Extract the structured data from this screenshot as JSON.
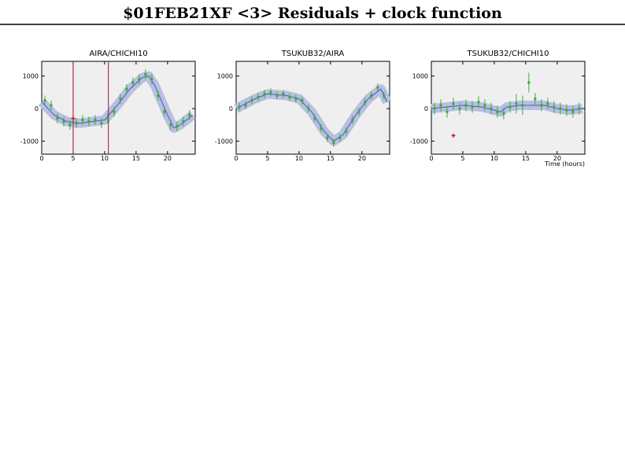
{
  "title": "$01FEB21XF <3> Residuals + clock function",
  "chart_data": [
    {
      "type": "scatter",
      "title": "AIRA/CHICHI10",
      "xlim": [
        0,
        24.4
      ],
      "ylim": [
        -1400,
        1450
      ],
      "xticks": [
        0,
        5,
        10,
        15,
        20
      ],
      "yticks": [
        -1000,
        0,
        1000
      ],
      "x": [
        0.5,
        1.5,
        2.5,
        3.5,
        4.5,
        5.5,
        6.5,
        7.5,
        8.5,
        9.5,
        10.5,
        11.5,
        12.5,
        13.5,
        14.5,
        15.5,
        16.5,
        17.5,
        18.5,
        19.5,
        20.5,
        21.5,
        22.5,
        23.5
      ],
      "values": [
        250,
        100,
        -300,
        -400,
        -500,
        -450,
        -350,
        -400,
        -350,
        -450,
        -300,
        -100,
        300,
        600,
        800,
        900,
        1050,
        900,
        400,
        -100,
        -500,
        -550,
        -400,
        -200
      ],
      "errors": [
        150,
        150,
        150,
        150,
        150,
        150,
        150,
        150,
        150,
        150,
        150,
        150,
        150,
        150,
        150,
        150,
        150,
        150,
        150,
        150,
        150,
        150,
        150,
        150
      ],
      "color": "#3aaa35",
      "clock_x": [
        0,
        2,
        4,
        6,
        8,
        10,
        12,
        14,
        16,
        17,
        18,
        20,
        21,
        22,
        24
      ],
      "clock_values": [
        200,
        -200,
        -400,
        -450,
        -400,
        -350,
        100,
        600,
        950,
        1000,
        700,
        -200,
        -600,
        -500,
        -200
      ],
      "clock_color": "#4a5ac0",
      "flagged_x": [
        5
      ],
      "flagged_values": [
        -300
      ],
      "flagged_color": "#c0203c",
      "vlines": [
        5,
        10.6
      ],
      "vline_color": "#a0102a"
    },
    {
      "type": "scatter",
      "title": "TSUKUB32/AIRA",
      "xlim": [
        0,
        24.4
      ],
      "ylim": [
        -1400,
        1450
      ],
      "xticks": [
        0,
        5,
        10,
        15,
        20
      ],
      "yticks": [
        -1000,
        0,
        1000
      ],
      "x": [
        0.5,
        1.5,
        2.5,
        3.5,
        4.5,
        5.5,
        6.5,
        7.5,
        8.5,
        9.5,
        10.5,
        11.5,
        12.5,
        13.5,
        14.5,
        15.5,
        16.5,
        17.5,
        18.5,
        19.5,
        20.5,
        21.5,
        22.5,
        23.5
      ],
      "values": [
        50,
        100,
        250,
        350,
        450,
        500,
        400,
        450,
        350,
        300,
        250,
        0,
        -300,
        -600,
        -900,
        -1050,
        -900,
        -700,
        -350,
        -100,
        200,
        400,
        650,
        400
      ],
      "errors": [
        120,
        120,
        120,
        120,
        120,
        120,
        120,
        120,
        120,
        120,
        120,
        120,
        120,
        120,
        120,
        120,
        120,
        120,
        120,
        120,
        120,
        120,
        120,
        120
      ],
      "color": "#3aaa35",
      "clock_x": [
        0,
        3,
        5,
        8,
        10,
        12,
        14,
        15.5,
        17,
        19,
        21,
        23,
        24
      ],
      "clock_values": [
        0,
        300,
        450,
        400,
        300,
        -100,
        -700,
        -1000,
        -800,
        -200,
        300,
        600,
        200
      ],
      "clock_color": "#4a5ac0"
    },
    {
      "type": "scatter",
      "title": "TSUKUB32/CHICHI10",
      "xlabel": "Time (hours)",
      "xlim": [
        0,
        24.4
      ],
      "ylim": [
        -1400,
        1450
      ],
      "xticks": [
        0,
        5,
        10,
        15,
        20
      ],
      "yticks": [
        -1000,
        0,
        1000
      ],
      "x": [
        0.5,
        1.5,
        2.5,
        3.5,
        4.5,
        5.5,
        6.5,
        7.5,
        8.5,
        9.5,
        10.5,
        11.5,
        12.5,
        13.5,
        14.5,
        15.5,
        16.5,
        17.5,
        18.5,
        19.5,
        20.5,
        21.5,
        22.5,
        23.5
      ],
      "values": [
        0,
        100,
        -100,
        150,
        0,
        100,
        50,
        200,
        100,
        0,
        -100,
        -150,
        50,
        150,
        100,
        800,
        300,
        100,
        150,
        50,
        0,
        -50,
        -100,
        0
      ],
      "errors": [
        180,
        180,
        180,
        180,
        180,
        180,
        180,
        180,
        180,
        180,
        180,
        180,
        180,
        300,
        300,
        300,
        180,
        180,
        180,
        180,
        180,
        180,
        180,
        180
      ],
      "color": "#3aaa35",
      "clock_x": [
        0,
        5,
        8,
        10,
        11,
        12,
        14,
        18,
        20,
        22,
        24
      ],
      "clock_values": [
        0,
        100,
        50,
        -50,
        -100,
        50,
        100,
        100,
        0,
        -50,
        0
      ],
      "clock_color": "#4a5ac0",
      "flagged_x": [
        3.5
      ],
      "flagged_values": [
        -830
      ],
      "flagged_color": "#c0203c"
    }
  ]
}
